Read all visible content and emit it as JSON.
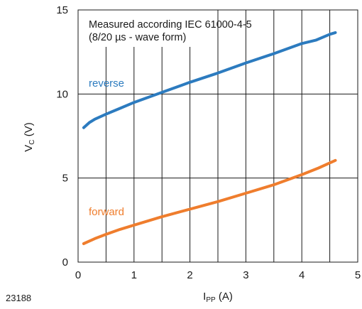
{
  "figure_number": "23188",
  "colors": {
    "reverse": "#2c7bbf",
    "forward": "#ef7d2d",
    "grid": "#1a1a1a"
  },
  "chart_data": {
    "type": "line",
    "annotation": [
      "Measured according IEC 61000-4-5",
      "(8/20 µs - wave form)"
    ],
    "xlabel": {
      "main": "I",
      "sub": "PP",
      "unit": " (A)"
    },
    "ylabel": {
      "main": "V",
      "sub": "C",
      "unit": " (V)"
    },
    "xlim": [
      0,
      5
    ],
    "ylim": [
      0,
      15
    ],
    "x_ticks": [
      "0",
      "1",
      "2",
      "3",
      "4",
      "5"
    ],
    "y_ticks": [
      "0",
      "5",
      "10",
      "15"
    ],
    "x_gridlines": [
      0.5,
      1,
      1.5,
      2,
      2.5,
      3,
      3.5,
      4,
      4.5
    ],
    "y_gridlines": [
      5,
      10
    ],
    "grid": true,
    "series": [
      {
        "name": "reverse",
        "x": [
          0.1,
          0.2,
          0.3,
          0.5,
          0.75,
          1.0,
          1.25,
          1.5,
          2.0,
          2.5,
          3.0,
          3.5,
          4.0,
          4.25,
          4.5,
          4.6
        ],
        "y": [
          8.0,
          8.3,
          8.5,
          8.8,
          9.15,
          9.5,
          9.8,
          10.1,
          10.7,
          11.25,
          11.85,
          12.4,
          13.0,
          13.2,
          13.55,
          13.65
        ]
      },
      {
        "name": "forward",
        "x": [
          0.1,
          0.3,
          0.5,
          0.75,
          1.0,
          1.5,
          2.0,
          2.5,
          3.0,
          3.5,
          4.0,
          4.3,
          4.6
        ],
        "y": [
          1.1,
          1.4,
          1.65,
          1.95,
          2.2,
          2.7,
          3.15,
          3.6,
          4.1,
          4.6,
          5.2,
          5.6,
          6.05
        ]
      }
    ]
  }
}
